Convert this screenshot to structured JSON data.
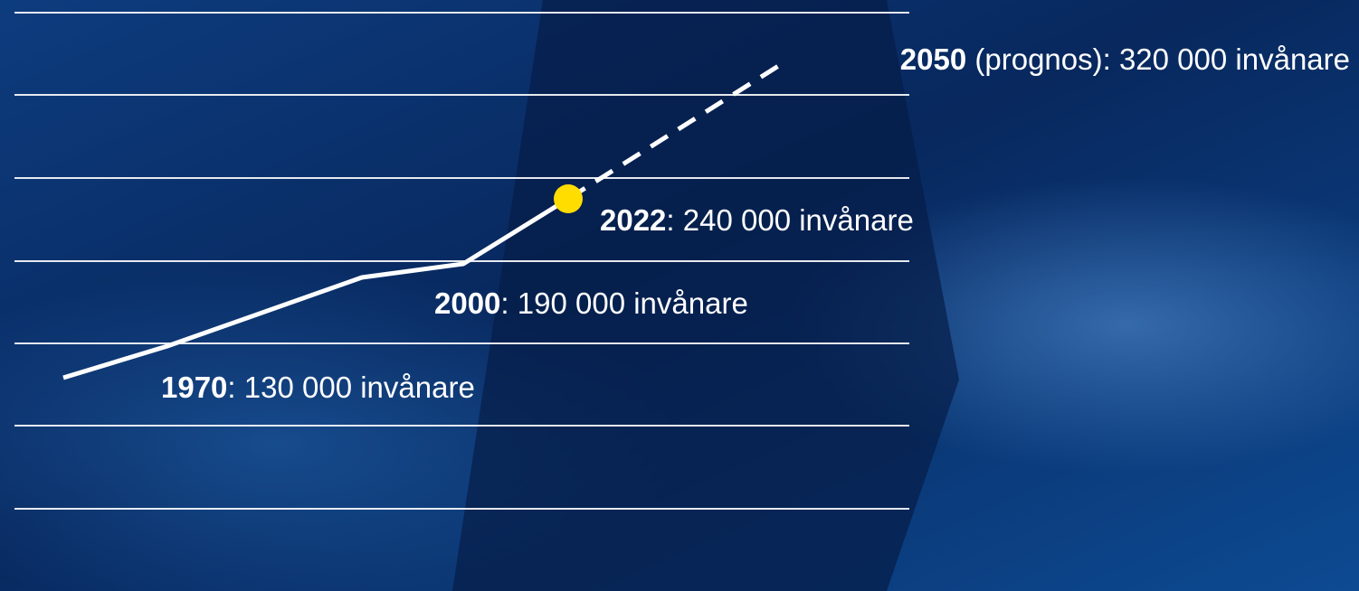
{
  "annotations": [
    {
      "year": "1970",
      "text": ": 130 000 invånare"
    },
    {
      "year": "2000",
      "text": ": 190 000 invånare"
    },
    {
      "year": "2022",
      "text": ": 240 000 invånare"
    },
    {
      "year": "2050",
      "text": " (prognos): 320 000 invånare"
    }
  ]
}
